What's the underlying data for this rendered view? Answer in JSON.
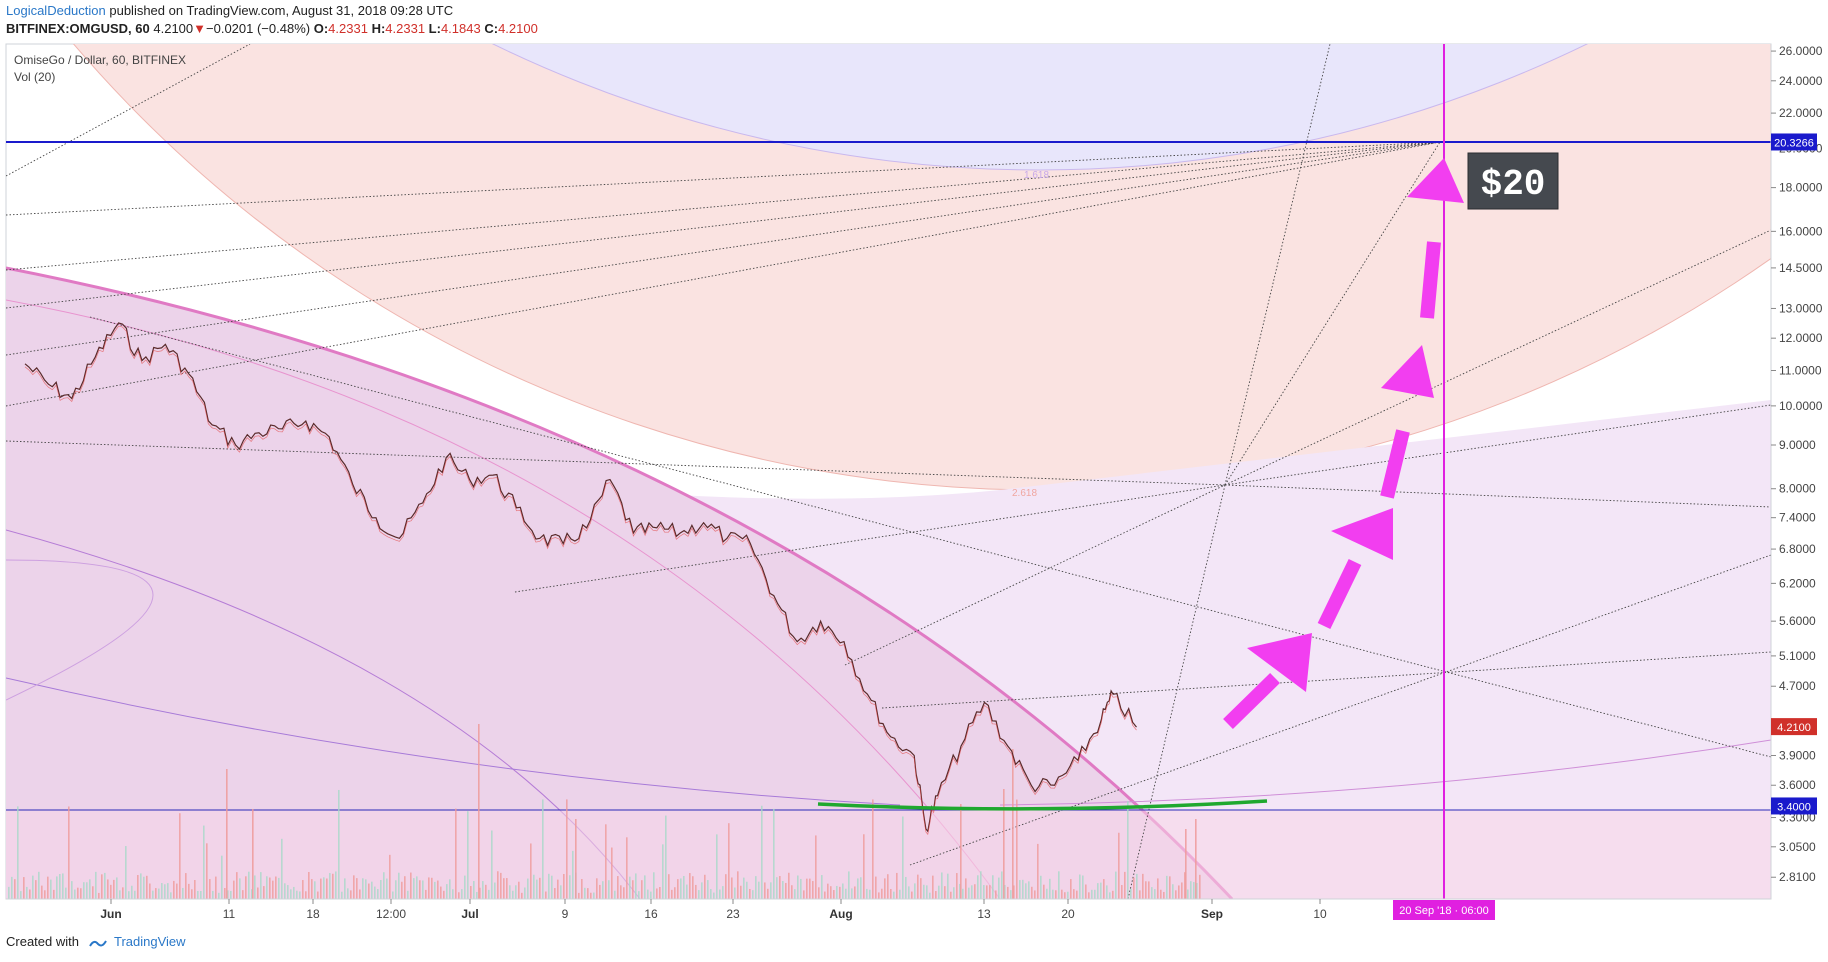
{
  "header": {
    "author": "LogicalDeduction",
    "published": "published on TradingView.com, August 31, 2018 09:28 UTC",
    "symbol": "BITFINEX:OMGUSD, 60",
    "last": "4.2100",
    "change_arrow": "▼",
    "change": "−0.0201 (−0.48%)",
    "o_label": "O:",
    "o": "4.2331",
    "h_label": "H:",
    "h": "4.2331",
    "l_label": "L:",
    "l": "4.1843",
    "c_label": "C:",
    "c": "4.2100"
  },
  "legend": {
    "title": "OmiseGo / Dollar, 60, BITFINEX",
    "indicator": "Vol (20)"
  },
  "footer": {
    "created_with": "Created with",
    "brand": "TradingView"
  },
  "chart_data": {
    "type": "line",
    "scale": "log",
    "ylim": [
      2.65,
      26.5
    ],
    "y_ticks": [
      "26.0000",
      "24.0000",
      "22.0000",
      "20.0000",
      "18.0000",
      "16.0000",
      "14.5000",
      "13.0000",
      "12.0000",
      "11.0000",
      "10.0000",
      "9.0000",
      "8.0000",
      "7.4000",
      "6.8000",
      "6.2000",
      "5.6000",
      "5.1000",
      "4.7000",
      "3.9000",
      "3.6000",
      "3.3000",
      "3.0500",
      "2.8100"
    ],
    "x_ticks": [
      "Jun",
      "11",
      "18",
      "12:00",
      "Jul",
      "9",
      "16",
      "23",
      "Aug",
      "13",
      "20",
      "Sep",
      "10"
    ],
    "price_labels": [
      {
        "value": 20.3266,
        "text": "20.3266",
        "color": "#1a1acc"
      },
      {
        "value": 4.21,
        "text": "4.2100",
        "color": "#d0302a"
      },
      {
        "value": 3.4,
        "text": "3.4000",
        "color": "#1a1acc"
      }
    ],
    "horizontal_lines": [
      20.3266,
      3.4
    ],
    "vertical_marker": {
      "label": "20 Sep '18 · 06:00",
      "color": "#e020e0"
    },
    "annotation": {
      "text": "$20"
    },
    "fib_labels": [
      "1.618",
      "2.618"
    ],
    "price_points": [
      [
        "May 28",
        11.2
      ],
      [
        "May 30",
        10.6
      ],
      [
        "Jun 1",
        10.2
      ],
      [
        "Jun 3",
        11.4
      ],
      [
        "Jun 5",
        12.5
      ],
      [
        "Jun 7",
        11.3
      ],
      [
        "Jun 9",
        11.8
      ],
      [
        "Jun 11",
        10.9
      ],
      [
        "Jun 13",
        9.5
      ],
      [
        "Jun 15",
        9.0
      ],
      [
        "Jun 17",
        9.3
      ],
      [
        "Jun 19",
        9.4
      ],
      [
        "Jun 21",
        9.6
      ],
      [
        "Jun 23",
        9.2
      ],
      [
        "Jun 25",
        8.1
      ],
      [
        "Jun 27",
        7.4
      ],
      [
        "Jun 29",
        7.0
      ],
      [
        "Jul 1",
        7.7
      ],
      [
        "Jul 3",
        8.7
      ],
      [
        "Jul 5",
        8.2
      ],
      [
        "Jul 7",
        8.3
      ],
      [
        "Jul 9",
        7.6
      ],
      [
        "Jul 11",
        7.0
      ],
      [
        "Jul 13",
        6.9
      ],
      [
        "Jul 15",
        7.2
      ],
      [
        "Jul 17",
        8.2
      ],
      [
        "Jul 19",
        7.1
      ],
      [
        "Jul 21",
        7.2
      ],
      [
        "Jul 23",
        7.1
      ],
      [
        "Jul 25",
        7.3
      ],
      [
        "Jul 27",
        7.0
      ],
      [
        "Jul 29",
        6.9
      ],
      [
        "Jul 31",
        6.0
      ],
      [
        "Aug 2",
        5.3
      ],
      [
        "Aug 4",
        5.6
      ],
      [
        "Aug 6",
        5.3
      ],
      [
        "Aug 8",
        4.6
      ],
      [
        "Aug 10",
        4.1
      ],
      [
        "Aug 12",
        3.9
      ],
      [
        "Aug 13",
        3.2
      ],
      [
        "Aug 14",
        3.5
      ],
      [
        "Aug 16",
        4.0
      ],
      [
        "Aug 18",
        4.5
      ],
      [
        "Aug 20",
        4.0
      ],
      [
        "Aug 22",
        3.6
      ],
      [
        "Aug 24",
        3.6
      ],
      [
        "Aug 26",
        3.85
      ],
      [
        "Aug 28",
        4.3
      ],
      [
        "Aug 29",
        4.6
      ],
      [
        "Aug 31",
        4.21
      ]
    ]
  }
}
